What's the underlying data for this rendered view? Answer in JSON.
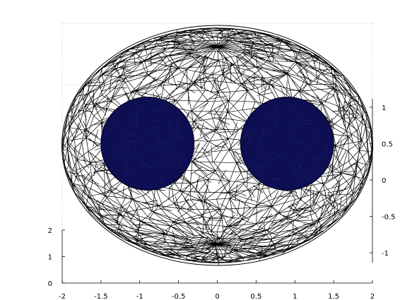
{
  "figure": {
    "type": "3d-wireframe-mesh",
    "description_visible": "ellipsoidal wireframe mesh containing two dark filled spheres",
    "colors": {
      "background": "#ffffff",
      "mesh_stroke": "#000000",
      "sphere_fill": "#0d0f52",
      "grid_dotted": "#b8b8b8",
      "axis": "#000000"
    },
    "axes": {
      "x_bottom": {
        "ticks": [
          "-2",
          "-1.5",
          "-1",
          "-0.5",
          "0",
          "0.5",
          "1",
          "1.5",
          "2"
        ],
        "range": [
          -2,
          2
        ]
      },
      "y_left": {
        "ticks": [
          "0",
          "1",
          "2"
        ],
        "range": [
          0,
          2
        ]
      },
      "z_right": {
        "ticks": [
          "1",
          "0.5",
          "0",
          "-0.5",
          "-1"
        ],
        "range": [
          -1,
          1
        ]
      }
    },
    "spheres": [
      {
        "center_x": -0.9,
        "center_z": 0.5,
        "radius": 0.6
      },
      {
        "center_x": 0.9,
        "center_z": 0.5,
        "radius": 0.6
      }
    ],
    "ellipsoid": {
      "semi_axis_x": 2,
      "semi_axis_y": 1.6
    }
  }
}
